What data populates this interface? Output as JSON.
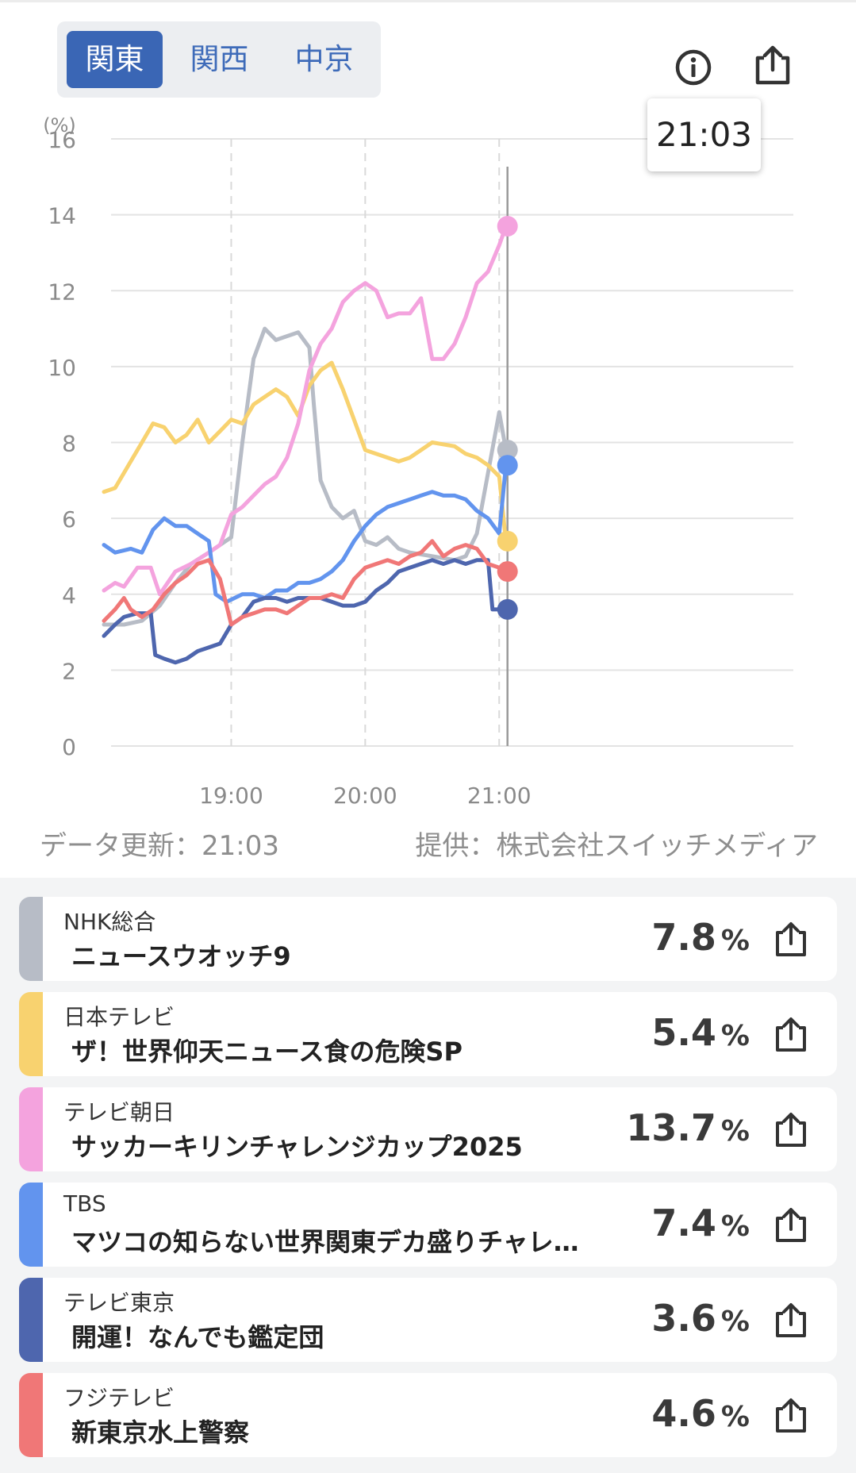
{
  "regions": {
    "tabs": [
      "関東",
      "関西",
      "中京"
    ],
    "selected": "関東"
  },
  "toolbar": {
    "info_icon": "info-circle-icon",
    "share_icon": "share-icon"
  },
  "tooltip": {
    "time": "21:03"
  },
  "chart_data": {
    "type": "line",
    "ylabel": "(%)",
    "ylim": [
      0,
      16
    ],
    "y_ticks": [
      "0",
      "2",
      "4",
      "6",
      "8",
      "10",
      "12",
      "14",
      "16"
    ],
    "x_ticks": [
      "19:00",
      "20:00",
      "21:00"
    ],
    "x_start": "18:03",
    "x_end": "21:03",
    "grid": true,
    "series": [
      {
        "name": "NHK総合",
        "color": "#b7bcc6",
        "points": [
          [
            "18:03",
            3.2
          ],
          [
            "18:12",
            3.2
          ],
          [
            "18:20",
            3.3
          ],
          [
            "18:28",
            3.7
          ],
          [
            "18:35",
            4.3
          ],
          [
            "18:42",
            4.8
          ],
          [
            "18:50",
            5.1
          ],
          [
            "18:55",
            5.3
          ],
          [
            "19:00",
            5.5
          ],
          [
            "19:05",
            8.0
          ],
          [
            "19:10",
            10.2
          ],
          [
            "19:15",
            11.0
          ],
          [
            "19:20",
            10.7
          ],
          [
            "19:30",
            10.9
          ],
          [
            "19:35",
            10.5
          ],
          [
            "19:37",
            9.0
          ],
          [
            "19:40",
            7.0
          ],
          [
            "19:45",
            6.3
          ],
          [
            "19:50",
            6.0
          ],
          [
            "19:55",
            6.2
          ],
          [
            "20:00",
            5.4
          ],
          [
            "20:05",
            5.3
          ],
          [
            "20:10",
            5.5
          ],
          [
            "20:15",
            5.2
          ],
          [
            "20:20",
            5.1
          ],
          [
            "20:30",
            5.0
          ],
          [
            "20:40",
            4.9
          ],
          [
            "20:45",
            5.0
          ],
          [
            "20:50",
            5.6
          ],
          [
            "20:55",
            7.2
          ],
          [
            "21:00",
            8.8
          ],
          [
            "21:03",
            7.8
          ]
        ]
      },
      {
        "name": "日本テレビ",
        "color": "#f8d26f",
        "points": [
          [
            "18:03",
            6.7
          ],
          [
            "18:08",
            6.8
          ],
          [
            "18:15",
            7.5
          ],
          [
            "18:20",
            8.0
          ],
          [
            "18:25",
            8.5
          ],
          [
            "18:30",
            8.4
          ],
          [
            "18:35",
            8.0
          ],
          [
            "18:40",
            8.2
          ],
          [
            "18:45",
            8.6
          ],
          [
            "18:50",
            8.0
          ],
          [
            "18:55",
            8.3
          ],
          [
            "19:00",
            8.6
          ],
          [
            "19:05",
            8.5
          ],
          [
            "19:10",
            9.0
          ],
          [
            "19:15",
            9.2
          ],
          [
            "19:20",
            9.4
          ],
          [
            "19:25",
            9.2
          ],
          [
            "19:30",
            8.7
          ],
          [
            "19:35",
            9.5
          ],
          [
            "19:40",
            9.9
          ],
          [
            "19:45",
            10.1
          ],
          [
            "19:50",
            9.4
          ],
          [
            "19:55",
            8.6
          ],
          [
            "20:00",
            7.8
          ],
          [
            "20:10",
            7.6
          ],
          [
            "20:15",
            7.5
          ],
          [
            "20:20",
            7.6
          ],
          [
            "20:30",
            8.0
          ],
          [
            "20:40",
            7.9
          ],
          [
            "20:45",
            7.7
          ],
          [
            "20:50",
            7.6
          ],
          [
            "20:55",
            7.4
          ],
          [
            "21:00",
            7.1
          ],
          [
            "21:03",
            5.4
          ]
        ]
      },
      {
        "name": "テレビ朝日",
        "color": "#f4a3de",
        "points": [
          [
            "18:03",
            4.1
          ],
          [
            "18:08",
            4.3
          ],
          [
            "18:12",
            4.2
          ],
          [
            "18:18",
            4.7
          ],
          [
            "18:24",
            4.7
          ],
          [
            "18:28",
            4.0
          ],
          [
            "18:35",
            4.6
          ],
          [
            "18:42",
            4.8
          ],
          [
            "18:50",
            5.1
          ],
          [
            "18:55",
            5.3
          ],
          [
            "19:00",
            6.1
          ],
          [
            "19:05",
            6.3
          ],
          [
            "19:10",
            6.6
          ],
          [
            "19:15",
            6.9
          ],
          [
            "19:20",
            7.1
          ],
          [
            "19:25",
            7.6
          ],
          [
            "19:30",
            8.5
          ],
          [
            "19:35",
            9.9
          ],
          [
            "19:40",
            10.6
          ],
          [
            "19:45",
            11.0
          ],
          [
            "19:50",
            11.7
          ],
          [
            "19:55",
            12.0
          ],
          [
            "20:00",
            12.2
          ],
          [
            "20:05",
            12.0
          ],
          [
            "20:10",
            11.3
          ],
          [
            "20:15",
            11.4
          ],
          [
            "20:20",
            11.4
          ],
          [
            "20:25",
            11.8
          ],
          [
            "20:30",
            10.2
          ],
          [
            "20:35",
            10.2
          ],
          [
            "20:40",
            10.6
          ],
          [
            "20:45",
            11.3
          ],
          [
            "20:50",
            12.2
          ],
          [
            "20:55",
            12.5
          ],
          [
            "21:00",
            13.2
          ],
          [
            "21:03",
            13.7
          ]
        ]
      },
      {
        "name": "TBS",
        "color": "#6294ee",
        "points": [
          [
            "18:03",
            5.3
          ],
          [
            "18:08",
            5.1
          ],
          [
            "18:15",
            5.2
          ],
          [
            "18:20",
            5.1
          ],
          [
            "18:25",
            5.7
          ],
          [
            "18:30",
            6.0
          ],
          [
            "18:35",
            5.8
          ],
          [
            "18:40",
            5.8
          ],
          [
            "18:45",
            5.6
          ],
          [
            "18:50",
            5.4
          ],
          [
            "18:53",
            4.0
          ],
          [
            "18:58",
            3.8
          ],
          [
            "19:05",
            4.0
          ],
          [
            "19:10",
            4.0
          ],
          [
            "19:15",
            3.9
          ],
          [
            "19:20",
            4.1
          ],
          [
            "19:25",
            4.1
          ],
          [
            "19:30",
            4.3
          ],
          [
            "19:35",
            4.3
          ],
          [
            "19:40",
            4.4
          ],
          [
            "19:45",
            4.6
          ],
          [
            "19:50",
            4.9
          ],
          [
            "19:55",
            5.4
          ],
          [
            "20:00",
            5.8
          ],
          [
            "20:05",
            6.1
          ],
          [
            "20:10",
            6.3
          ],
          [
            "20:15",
            6.4
          ],
          [
            "20:20",
            6.5
          ],
          [
            "20:25",
            6.6
          ],
          [
            "20:30",
            6.7
          ],
          [
            "20:35",
            6.6
          ],
          [
            "20:40",
            6.6
          ],
          [
            "20:45",
            6.5
          ],
          [
            "20:50",
            6.2
          ],
          [
            "20:55",
            6.0
          ],
          [
            "21:00",
            5.6
          ],
          [
            "21:03",
            7.4
          ]
        ]
      },
      {
        "name": "テレビ東京",
        "color": "#4e66ae",
        "points": [
          [
            "18:03",
            2.9
          ],
          [
            "18:08",
            3.2
          ],
          [
            "18:12",
            3.4
          ],
          [
            "18:18",
            3.5
          ],
          [
            "18:24",
            3.5
          ],
          [
            "18:26",
            2.4
          ],
          [
            "18:30",
            2.3
          ],
          [
            "18:35",
            2.2
          ],
          [
            "18:40",
            2.3
          ],
          [
            "18:45",
            2.5
          ],
          [
            "18:50",
            2.6
          ],
          [
            "18:55",
            2.7
          ],
          [
            "19:00",
            3.2
          ],
          [
            "19:05",
            3.4
          ],
          [
            "19:10",
            3.8
          ],
          [
            "19:15",
            3.9
          ],
          [
            "19:20",
            3.9
          ],
          [
            "19:25",
            3.8
          ],
          [
            "19:30",
            3.9
          ],
          [
            "19:35",
            3.9
          ],
          [
            "19:40",
            3.9
          ],
          [
            "19:45",
            3.8
          ],
          [
            "19:50",
            3.7
          ],
          [
            "19:55",
            3.7
          ],
          [
            "20:00",
            3.8
          ],
          [
            "20:05",
            4.1
          ],
          [
            "20:10",
            4.3
          ],
          [
            "20:15",
            4.6
          ],
          [
            "20:20",
            4.7
          ],
          [
            "20:25",
            4.8
          ],
          [
            "20:30",
            4.9
          ],
          [
            "20:35",
            4.8
          ],
          [
            "20:40",
            4.9
          ],
          [
            "20:45",
            4.8
          ],
          [
            "20:50",
            4.9
          ],
          [
            "20:55",
            4.9
          ],
          [
            "20:57",
            3.6
          ],
          [
            "21:00",
            3.6
          ],
          [
            "21:03",
            3.6
          ]
        ]
      },
      {
        "name": "フジテレビ",
        "color": "#f07777",
        "points": [
          [
            "18:03",
            3.3
          ],
          [
            "18:08",
            3.6
          ],
          [
            "18:12",
            3.9
          ],
          [
            "18:15",
            3.6
          ],
          [
            "18:20",
            3.4
          ],
          [
            "18:25",
            3.6
          ],
          [
            "18:30",
            4.0
          ],
          [
            "18:35",
            4.3
          ],
          [
            "18:40",
            4.5
          ],
          [
            "18:45",
            4.8
          ],
          [
            "18:50",
            4.9
          ],
          [
            "18:55",
            4.4
          ],
          [
            "19:00",
            3.2
          ],
          [
            "19:05",
            3.4
          ],
          [
            "19:10",
            3.5
          ],
          [
            "19:15",
            3.6
          ],
          [
            "19:20",
            3.6
          ],
          [
            "19:25",
            3.5
          ],
          [
            "19:30",
            3.7
          ],
          [
            "19:35",
            3.9
          ],
          [
            "19:40",
            3.9
          ],
          [
            "19:45",
            4.0
          ],
          [
            "19:50",
            3.9
          ],
          [
            "19:55",
            4.4
          ],
          [
            "20:00",
            4.7
          ],
          [
            "20:05",
            4.8
          ],
          [
            "20:10",
            4.9
          ],
          [
            "20:15",
            4.8
          ],
          [
            "20:20",
            5.0
          ],
          [
            "20:25",
            5.1
          ],
          [
            "20:30",
            5.4
          ],
          [
            "20:35",
            5.0
          ],
          [
            "20:40",
            5.2
          ],
          [
            "20:45",
            5.3
          ],
          [
            "20:50",
            5.2
          ],
          [
            "20:55",
            4.8
          ],
          [
            "21:00",
            4.7
          ],
          [
            "21:03",
            4.6
          ]
        ]
      }
    ]
  },
  "footer": {
    "update": "データ更新：21:03",
    "provider": "提供：株式会社スイッチメディア"
  },
  "programs": [
    {
      "channel": "NHK総合",
      "title": "ニュースウオッチ9",
      "rating": "7.8",
      "unit": "%",
      "color": "#b7bcc6"
    },
    {
      "channel": "日本テレビ",
      "title": "ザ！世界仰天ニュース食の危険SP",
      "rating": "5.4",
      "unit": "%",
      "color": "#f8d26f"
    },
    {
      "channel": "テレビ朝日",
      "title": "サッカーキリンチャレンジカップ2025",
      "rating": "13.7",
      "unit": "%",
      "color": "#f4a3de"
    },
    {
      "channel": "TBS",
      "title": "マツコの知らない世界関東デカ盛りチャレ…",
      "rating": "7.4",
      "unit": "%",
      "color": "#6294ee"
    },
    {
      "channel": "テレビ東京",
      "title": "開運！なんでも鑑定団",
      "rating": "3.6",
      "unit": "%",
      "color": "#4e66ae"
    },
    {
      "channel": "フジテレビ",
      "title": "新東京水上警察",
      "rating": "4.6",
      "unit": "%",
      "color": "#f07777"
    }
  ]
}
